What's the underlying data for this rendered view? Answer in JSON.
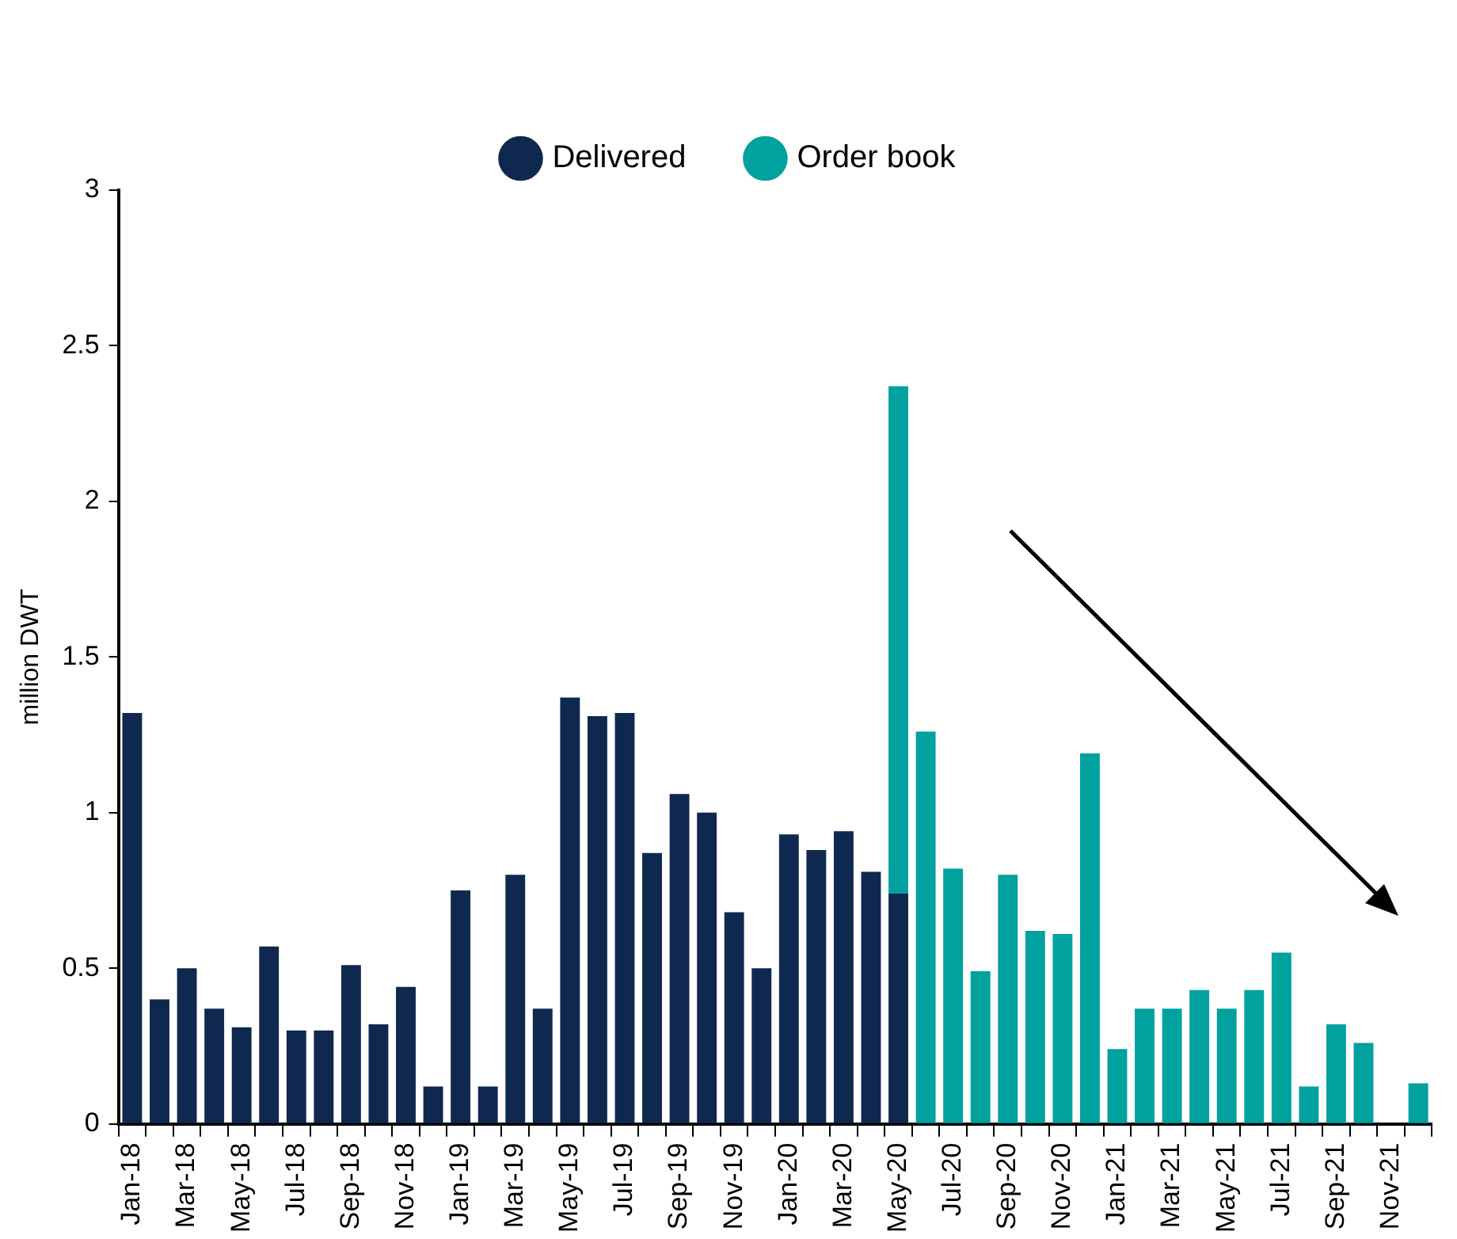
{
  "chart_data": {
    "type": "bar",
    "stacked": true,
    "ylabel": "million DWT",
    "categories": [
      "Jan-18",
      null,
      "Mar-18",
      null,
      "May-18",
      null,
      "Jul-18",
      null,
      "Sep-18",
      null,
      "Nov-18",
      null,
      "Jan-19",
      null,
      "Mar-19",
      null,
      "May-19",
      null,
      "Jul-19",
      null,
      "Sep-19",
      null,
      "Nov-19",
      null,
      "Jan-20",
      null,
      "Mar-20",
      null,
      "May-20",
      null,
      "Jul-20",
      null,
      "Sep-20",
      null,
      "Nov-20",
      null,
      "Jan-21",
      null,
      "Mar-21",
      null,
      "May-21",
      null,
      "Jul-21",
      null,
      "Sep-21",
      null,
      "Nov-21",
      null
    ],
    "series": [
      {
        "name": "Delivered",
        "color": "#0f2850",
        "values": [
          1.32,
          0.4,
          0.5,
          0.37,
          0.31,
          0.57,
          0.3,
          0.3,
          0.51,
          0.32,
          0.44,
          0.12,
          0.75,
          0.12,
          0.8,
          0.37,
          1.37,
          1.31,
          1.32,
          0.87,
          1.06,
          1.0,
          0.68,
          0.5,
          0.93,
          0.88,
          0.94,
          0.81,
          0.74,
          null,
          null,
          null,
          null,
          null,
          null,
          null,
          null,
          null,
          null,
          null,
          null,
          null,
          null,
          null,
          null,
          null,
          null,
          null
        ]
      },
      {
        "name": "Order book",
        "color": "#00a19f",
        "values": [
          null,
          null,
          null,
          null,
          null,
          null,
          null,
          null,
          null,
          null,
          null,
          null,
          null,
          null,
          null,
          null,
          null,
          null,
          null,
          null,
          null,
          null,
          null,
          null,
          null,
          null,
          null,
          null,
          1.63,
          1.26,
          0.82,
          0.49,
          0.8,
          0.62,
          0.61,
          1.19,
          0.24,
          0.37,
          0.37,
          0.43,
          0.37,
          0.43,
          0.55,
          0.12,
          0.32,
          0.26,
          null,
          0.13
        ]
      }
    ],
    "ylim": [
      0,
      3
    ],
    "yticks": [
      0,
      0.5,
      1,
      1.5,
      2,
      2.5,
      3
    ],
    "legend": "top"
  }
}
